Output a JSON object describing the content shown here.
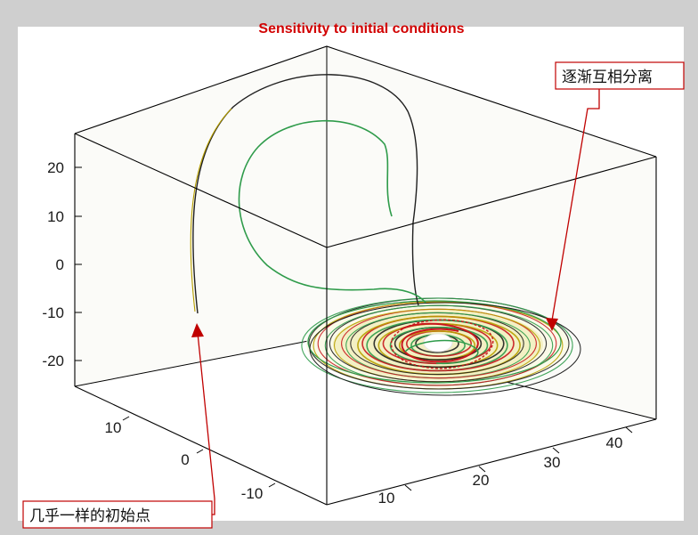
{
  "chart_data": {
    "type": "line",
    "title": "Sensitivity to initial conditions",
    "z_ticks": [
      "20",
      "10",
      "0",
      "-10",
      "-20"
    ],
    "x_ticks": [
      "10",
      "20",
      "30",
      "40"
    ],
    "y_ticks": [
      "10",
      "0",
      "-10"
    ],
    "annotations": [
      {
        "text": "逐渐互相分离"
      },
      {
        "text": "几乎一样的初始点"
      }
    ],
    "series": [
      {
        "color": "#1f1f1f"
      },
      {
        "color": "#2e9b4a"
      },
      {
        "color": "#c8161d"
      },
      {
        "color": "#b8a000"
      }
    ],
    "colors": {
      "title": "#d10000",
      "annotation_border": "#c00000",
      "box_edge": "#000000"
    }
  }
}
